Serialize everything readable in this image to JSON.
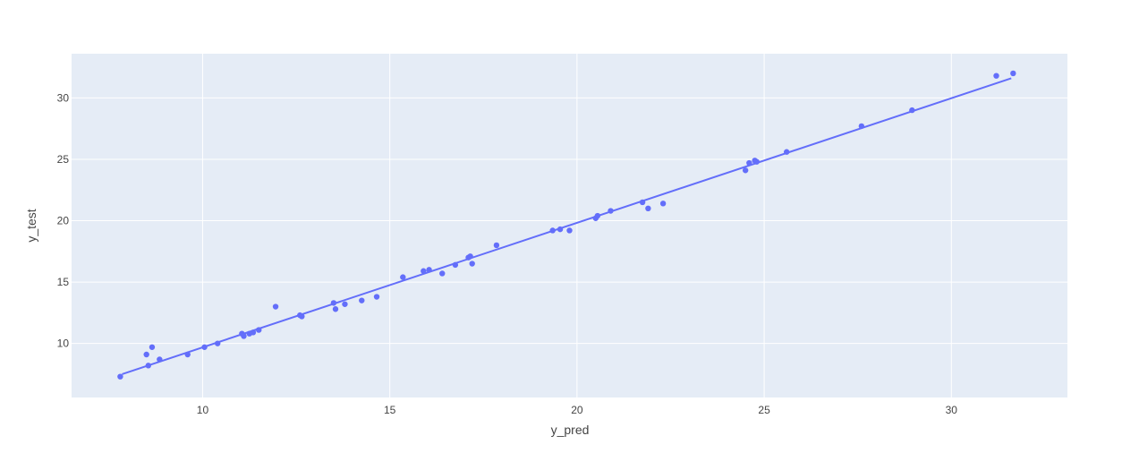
{
  "chart_data": {
    "type": "scatter",
    "title": "",
    "xlabel": "y_pred",
    "ylabel": "y_test",
    "xlim": [
      6.5,
      33.1
    ],
    "ylim": [
      5.6,
      33.6
    ],
    "grid": true,
    "x_ticks": [
      10,
      15,
      20,
      25,
      30
    ],
    "y_ticks": [
      10,
      15,
      20,
      25,
      30
    ],
    "colors": {
      "plot_bg": "#E5ECF6",
      "grid": "#ffffff",
      "marker": "#636EFA",
      "trend": "#636EFA",
      "text": "#444444"
    },
    "series": [
      {
        "mode": "markers",
        "points": [
          [
            7.8,
            7.3
          ],
          [
            8.5,
            9.1
          ],
          [
            8.55,
            8.2
          ],
          [
            8.65,
            9.7
          ],
          [
            8.85,
            8.7
          ],
          [
            9.6,
            9.1
          ],
          [
            10.05,
            9.7
          ],
          [
            10.4,
            10.0
          ],
          [
            11.05,
            10.8
          ],
          [
            11.1,
            10.6
          ],
          [
            11.25,
            10.8
          ],
          [
            11.35,
            10.9
          ],
          [
            11.5,
            11.1
          ],
          [
            11.95,
            13.0
          ],
          [
            12.6,
            12.3
          ],
          [
            12.65,
            12.2
          ],
          [
            13.5,
            13.3
          ],
          [
            13.55,
            12.8
          ],
          [
            13.8,
            13.2
          ],
          [
            14.25,
            13.5
          ],
          [
            14.65,
            13.8
          ],
          [
            15.35,
            15.4
          ],
          [
            15.9,
            15.9
          ],
          [
            16.05,
            16.0
          ],
          [
            16.4,
            15.7
          ],
          [
            16.75,
            16.4
          ],
          [
            17.1,
            17.0
          ],
          [
            17.15,
            17.1
          ],
          [
            17.2,
            16.5
          ],
          [
            17.85,
            18.0
          ],
          [
            19.35,
            19.2
          ],
          [
            19.55,
            19.3
          ],
          [
            19.8,
            19.2
          ],
          [
            20.5,
            20.2
          ],
          [
            20.55,
            20.4
          ],
          [
            20.9,
            20.8
          ],
          [
            21.75,
            21.5
          ],
          [
            21.9,
            21.0
          ],
          [
            22.3,
            21.4
          ],
          [
            24.5,
            24.1
          ],
          [
            24.6,
            24.7
          ],
          [
            24.75,
            24.9
          ],
          [
            24.8,
            24.8
          ],
          [
            25.6,
            25.6
          ],
          [
            27.6,
            27.7
          ],
          [
            28.95,
            29.0
          ],
          [
            31.2,
            31.8
          ],
          [
            31.65,
            32.0
          ]
        ]
      },
      {
        "mode": "lines",
        "points": [
          [
            7.85,
            7.5
          ],
          [
            31.6,
            31.6
          ]
        ]
      }
    ]
  }
}
